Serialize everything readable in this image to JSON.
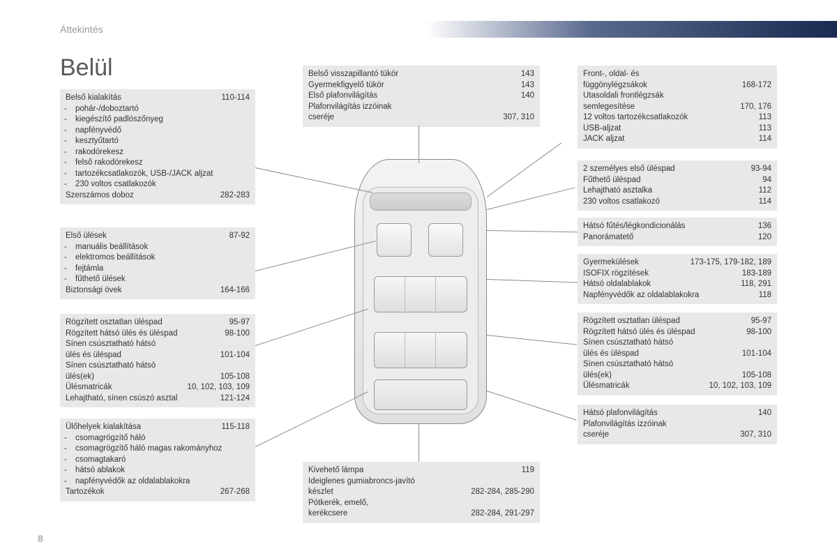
{
  "header": {
    "section_label": "Áttekintés"
  },
  "title": "Belül",
  "page_number": "8",
  "colors": {
    "box_bg": "#e8e8e8",
    "text": "#333333",
    "header_text": "#9a9a9a",
    "gradient_end": "#1a2a50"
  },
  "left": {
    "b1": {
      "items": [
        {
          "label": "Belső kialakítás",
          "page": "110-114"
        }
      ],
      "subs": [
        "pohár-/doboztartó",
        "kiegészítő padlószőnyeg",
        "napfényvédő",
        "kesztyűtartó",
        "rakodórekesz",
        "felső rakodórekesz",
        "tartozékcsatlakozók, USB-/JACK aljzat",
        "230 voltos csatlakozók"
      ],
      "tail": [
        {
          "label": "Szerszámos doboz",
          "page": "282-283"
        }
      ]
    },
    "b2": {
      "items": [
        {
          "label": "Első ülések",
          "page": "87-92"
        }
      ],
      "subs": [
        "manuális beállítások",
        "elektromos beállítások",
        "fejtámla",
        "fűthető ülések"
      ],
      "tail": [
        {
          "label": "Biztonsági övek",
          "page": "164-166"
        }
      ]
    },
    "b3": {
      "items": [
        {
          "label": "Rögzített osztatlan üléspad",
          "page": "95-97"
        },
        {
          "label": "Rögzített hátsó ülés és üléspad",
          "page": "98-100"
        },
        {
          "label": "Sínen csúsztatható hátsó",
          "page": ""
        },
        {
          "label": "  ülés és üléspad",
          "page": "101-104"
        },
        {
          "label": "Sínen csúsztatható hátsó",
          "page": ""
        },
        {
          "label": "  ülés(ek)",
          "page": "105-108"
        },
        {
          "label": "Ülésmatricák",
          "page": "10, 102, 103, 109"
        },
        {
          "label": "Lehajtható, sínen csúszó asztal",
          "page": "121-124"
        }
      ]
    },
    "b4": {
      "items": [
        {
          "label": "Ülőhelyek kialakítása",
          "page": "115-118"
        }
      ],
      "subs": [
        "csomagrögzítő háló",
        "csomagrögzítő háló magas rakományhoz",
        "csomagtakaró",
        "hátsó ablakok",
        "napfényvédők az oldalablakokra"
      ],
      "tail": [
        {
          "label": "Tartozékok",
          "page": "267-268"
        }
      ]
    }
  },
  "top_center": {
    "items": [
      {
        "label": "Belső visszapillantó tükör",
        "page": "143"
      },
      {
        "label": "Gyermekfigyelő tükör",
        "page": "143"
      },
      {
        "label": "Első plafonvilágítás",
        "page": "140"
      },
      {
        "label": "Plafonvilágítás izzóinak",
        "page": ""
      },
      {
        "label": "  cseréje",
        "page": "307, 310"
      }
    ]
  },
  "bottom_center": {
    "items": [
      {
        "label": "Kivehető lámpa",
        "page": "119"
      },
      {
        "label": "Ideiglenes gumiabroncs-javító",
        "page": ""
      },
      {
        "label": "  készlet",
        "page": "282-284, 285-290"
      },
      {
        "label": "Pótkerék, emelő,",
        "page": ""
      },
      {
        "label": "  kerékcsere",
        "page": "282-284, 291-297"
      }
    ]
  },
  "right": {
    "b1": {
      "items": [
        {
          "label": "Front-, oldal- és",
          "page": ""
        },
        {
          "label": "  függönylégzsákok",
          "page": "168-172"
        },
        {
          "label": "Utasoldali frontlégzsák",
          "page": ""
        },
        {
          "label": "  semlegesítése",
          "page": "170, 176"
        },
        {
          "label": "12 voltos tartozékcsatlakozók",
          "page": "113"
        },
        {
          "label": "USB-aljzat",
          "page": "113"
        },
        {
          "label": "JACK aljzat",
          "page": "114"
        }
      ]
    },
    "b2": {
      "items": [
        {
          "label": "2 személyes első üléspad",
          "page": "93-94"
        },
        {
          "label": "Fűthető üléspad",
          "page": "94"
        },
        {
          "label": "Lehajtható asztalka",
          "page": "112"
        },
        {
          "label": "230 voltos csatlakozó",
          "page": "114"
        }
      ]
    },
    "b3": {
      "items": [
        {
          "label": "Hátsó fűtés/légkondicionálás",
          "page": "136"
        },
        {
          "label": "Panorámatető",
          "page": "120"
        }
      ]
    },
    "b4": {
      "items": [
        {
          "label": "Gyermekülések",
          "page": "173-175, 179-182, 189"
        },
        {
          "label": "ISOFIX rögzítések",
          "page": "183-189"
        },
        {
          "label": "Hátsó oldalablakok",
          "page": "118, 291"
        },
        {
          "label": "Napfényvédők az oldalablakokra",
          "page": "118"
        }
      ]
    },
    "b5": {
      "items": [
        {
          "label": "Rögzített osztatlan üléspad",
          "page": "95-97"
        },
        {
          "label": "Rögzített hátsó ülés és üléspad",
          "page": "98-100"
        },
        {
          "label": "Sínen csúsztatható hátsó",
          "page": ""
        },
        {
          "label": "  ülés és üléspad",
          "page": "101-104"
        },
        {
          "label": "Sínen csúsztatható hátsó",
          "page": ""
        },
        {
          "label": "  ülés(ek)",
          "page": "105-108"
        },
        {
          "label": "Ülésmatricák",
          "page": "10, 102, 103, 109"
        }
      ]
    },
    "b6": {
      "items": [
        {
          "label": "Hátsó plafonvilágítás",
          "page": "140"
        },
        {
          "label": "Plafonvilágítás izzóinak",
          "page": ""
        },
        {
          "label": "  cseréje",
          "page": "307, 310"
        }
      ]
    }
  }
}
